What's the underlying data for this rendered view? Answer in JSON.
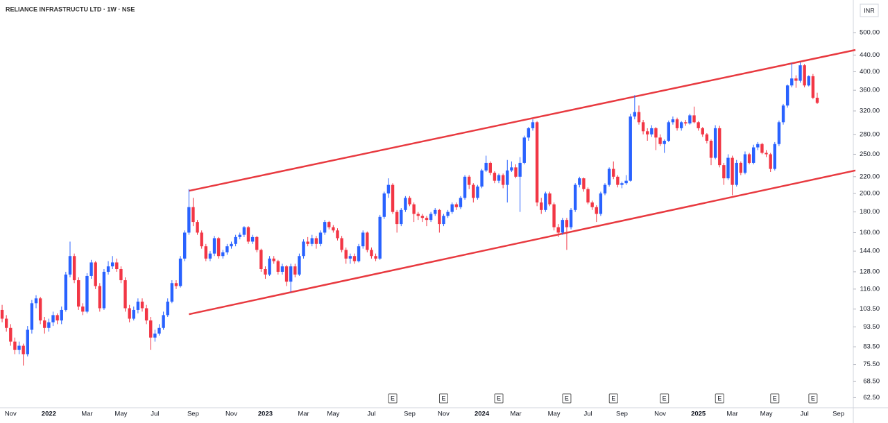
{
  "chart_data": {
    "type": "candlestick",
    "title": "RELIANCE INFRASTRUCTU LTD · 1W · NSE",
    "currency": "INR",
    "log_scale": true,
    "up_color": "#2962ff",
    "down_color": "#f23645",
    "ylim": [
      59,
      602
    ],
    "yticks": [
      {
        "value": 500,
        "label": "500.00"
      },
      {
        "value": 440,
        "label": "440.00"
      },
      {
        "value": 400,
        "label": "400.00"
      },
      {
        "value": 360,
        "label": "360.00"
      },
      {
        "value": 320,
        "label": "320.00"
      },
      {
        "value": 280,
        "label": "280.00"
      },
      {
        "value": 250,
        "label": "250.00"
      },
      {
        "value": 220,
        "label": "220.00"
      },
      {
        "value": 200,
        "label": "200.00"
      },
      {
        "value": 180,
        "label": "180.00"
      },
      {
        "value": 160,
        "label": "160.00"
      },
      {
        "value": 144,
        "label": "144.00"
      },
      {
        "value": 128,
        "label": "128.00"
      },
      {
        "value": 116,
        "label": "116.00"
      },
      {
        "value": 103.5,
        "label": "103.50"
      },
      {
        "value": 93.5,
        "label": "93.50"
      },
      {
        "value": 83.5,
        "label": "83.50"
      },
      {
        "value": 75.5,
        "label": "75.50"
      },
      {
        "value": 68.5,
        "label": "68.50"
      },
      {
        "value": 62.5,
        "label": "62.50"
      }
    ],
    "categories": [
      null,
      null,
      "Nov",
      null,
      null,
      null,
      null,
      null,
      null,
      null,
      null,
      "2022",
      null,
      null,
      null,
      null,
      null,
      null,
      null,
      null,
      "Mar",
      null,
      null,
      null,
      null,
      null,
      null,
      null,
      "May",
      null,
      null,
      null,
      null,
      null,
      null,
      null,
      "Jul",
      null,
      null,
      null,
      null,
      null,
      null,
      null,
      null,
      "Sep",
      null,
      null,
      null,
      null,
      null,
      null,
      null,
      null,
      "Nov",
      null,
      null,
      null,
      null,
      null,
      null,
      null,
      "2023",
      null,
      null,
      null,
      null,
      null,
      null,
      null,
      null,
      "Mar",
      null,
      null,
      null,
      null,
      null,
      null,
      "May",
      null,
      null,
      null,
      null,
      null,
      null,
      null,
      null,
      "Jul",
      null,
      null,
      null,
      null,
      null,
      null,
      null,
      null,
      "Sep",
      null,
      null,
      null,
      null,
      null,
      null,
      null,
      "Nov",
      null,
      null,
      null,
      null,
      null,
      null,
      null,
      null,
      "2024",
      null,
      null,
      null,
      null,
      null,
      null,
      null,
      "Mar",
      null,
      null,
      null,
      null,
      null,
      null,
      null,
      null,
      "May",
      null,
      null,
      null,
      null,
      null,
      null,
      null,
      "Jul",
      null,
      null,
      null,
      null,
      null,
      null,
      null,
      "Sep",
      null,
      null,
      null,
      null,
      null,
      null,
      null,
      null,
      "Nov",
      null,
      null,
      null,
      null,
      null,
      null,
      null,
      null,
      "2025",
      null,
      null,
      null,
      null,
      null,
      null,
      null,
      "Mar",
      null,
      null,
      null,
      null,
      null,
      null,
      null,
      "May",
      null,
      null,
      null,
      null,
      null,
      null,
      null,
      null,
      "Jul",
      null,
      null,
      null,
      null,
      null,
      null,
      null,
      "Sep",
      null,
      null,
      null
    ],
    "candles": [
      [
        103,
        106,
        96,
        98
      ],
      [
        98,
        100,
        91,
        93
      ],
      [
        93,
        95,
        84,
        86
      ],
      [
        86,
        88,
        80,
        82
      ],
      [
        82,
        86,
        80,
        84
      ],
      [
        84,
        85,
        75,
        80
      ],
      [
        80,
        94,
        79,
        92
      ],
      [
        92,
        109,
        90,
        107
      ],
      [
        107,
        112,
        104,
        110
      ],
      [
        110,
        111,
        95,
        97
      ],
      [
        97,
        99,
        90,
        93
      ],
      [
        93,
        98,
        91,
        96
      ],
      [
        96,
        102,
        94,
        100
      ],
      [
        100,
        101,
        95,
        97
      ],
      [
        97,
        105,
        95,
        103
      ],
      [
        103,
        128,
        102,
        126
      ],
      [
        126,
        152,
        124,
        140
      ],
      [
        140,
        142,
        120,
        122
      ],
      [
        122,
        124,
        103,
        105
      ],
      [
        105,
        107,
        100,
        102
      ],
      [
        102,
        127,
        101,
        125
      ],
      [
        125,
        137,
        123,
        135
      ],
      [
        135,
        136,
        116,
        118
      ],
      [
        118,
        120,
        102,
        104
      ],
      [
        104,
        130,
        103,
        128
      ],
      [
        128,
        136,
        126,
        132
      ],
      [
        132,
        140,
        130,
        135
      ],
      [
        135,
        138,
        128,
        130
      ],
      [
        130,
        132,
        120,
        122
      ],
      [
        122,
        124,
        102,
        104
      ],
      [
        104,
        106,
        96,
        98
      ],
      [
        98,
        105,
        97,
        103
      ],
      [
        103,
        110,
        101,
        108
      ],
      [
        108,
        110,
        102,
        104
      ],
      [
        104,
        106,
        95,
        97
      ],
      [
        97,
        99,
        82,
        88
      ],
      [
        88,
        92,
        86,
        90
      ],
      [
        90,
        95,
        89,
        93
      ],
      [
        93,
        102,
        92,
        100
      ],
      [
        100,
        110,
        99,
        108
      ],
      [
        108,
        122,
        107,
        120
      ],
      [
        120,
        122,
        116,
        118
      ],
      [
        118,
        140,
        117,
        138
      ],
      [
        138,
        162,
        136,
        160
      ],
      [
        160,
        205,
        158,
        185
      ],
      [
        185,
        195,
        166,
        170
      ],
      [
        170,
        172,
        158,
        160
      ],
      [
        160,
        162,
        146,
        148
      ],
      [
        148,
        150,
        136,
        138
      ],
      [
        138,
        144,
        136,
        142
      ],
      [
        142,
        157,
        140,
        155
      ],
      [
        155,
        156,
        138,
        140
      ],
      [
        140,
        145,
        138,
        143
      ],
      [
        143,
        150,
        141,
        148
      ],
      [
        148,
        152,
        146,
        150
      ],
      [
        150,
        158,
        148,
        156
      ],
      [
        156,
        160,
        154,
        158
      ],
      [
        158,
        166,
        156,
        165
      ],
      [
        165,
        166,
        150,
        152
      ],
      [
        152,
        158,
        150,
        156
      ],
      [
        156,
        157,
        143,
        145
      ],
      [
        145,
        146,
        128,
        130
      ],
      [
        130,
        132,
        123,
        126
      ],
      [
        126,
        140,
        125,
        138
      ],
      [
        138,
        140,
        134,
        136
      ],
      [
        136,
        137,
        126,
        128
      ],
      [
        128,
        134,
        126,
        132
      ],
      [
        132,
        133,
        118,
        121
      ],
      [
        121,
        134,
        114,
        132
      ],
      [
        132,
        134,
        124,
        126
      ],
      [
        126,
        142,
        125,
        140
      ],
      [
        140,
        154,
        138,
        152
      ],
      [
        152,
        156,
        148,
        150
      ],
      [
        150,
        158,
        148,
        155
      ],
      [
        155,
        157,
        146,
        150
      ],
      [
        150,
        162,
        148,
        160
      ],
      [
        160,
        172,
        158,
        170
      ],
      [
        170,
        171,
        163,
        165
      ],
      [
        165,
        167,
        160,
        162
      ],
      [
        162,
        164,
        153,
        155
      ],
      [
        155,
        157,
        143,
        145
      ],
      [
        145,
        147,
        134,
        138
      ],
      [
        138,
        142,
        134,
        140
      ],
      [
        140,
        142,
        134,
        136
      ],
      [
        136,
        150,
        135,
        148
      ],
      [
        148,
        162,
        146,
        160
      ],
      [
        160,
        161,
        143,
        145
      ],
      [
        145,
        147,
        138,
        140
      ],
      [
        140,
        142,
        136,
        138
      ],
      [
        138,
        177,
        137,
        175
      ],
      [
        175,
        202,
        173,
        200
      ],
      [
        200,
        218,
        195,
        210
      ],
      [
        210,
        212,
        178,
        180
      ],
      [
        180,
        182,
        160,
        168
      ],
      [
        168,
        184,
        166,
        182
      ],
      [
        182,
        197,
        180,
        195
      ],
      [
        195,
        197,
        186,
        188
      ],
      [
        188,
        190,
        170,
        178
      ],
      [
        178,
        180,
        172,
        176
      ],
      [
        176,
        178,
        170,
        174
      ],
      [
        174,
        176,
        166,
        172
      ],
      [
        172,
        180,
        170,
        178
      ],
      [
        178,
        184,
        176,
        182
      ],
      [
        182,
        183,
        160,
        168
      ],
      [
        168,
        178,
        166,
        176
      ],
      [
        176,
        182,
        174,
        180
      ],
      [
        180,
        190,
        178,
        188
      ],
      [
        188,
        190,
        182,
        185
      ],
      [
        185,
        197,
        183,
        195
      ],
      [
        195,
        222,
        193,
        220
      ],
      [
        220,
        222,
        205,
        210
      ],
      [
        210,
        212,
        190,
        195
      ],
      [
        195,
        210,
        193,
        208
      ],
      [
        208,
        230,
        206,
        228
      ],
      [
        228,
        248,
        226,
        238
      ],
      [
        238,
        240,
        222,
        225
      ],
      [
        225,
        227,
        212,
        215
      ],
      [
        215,
        224,
        212,
        222
      ],
      [
        222,
        224,
        206,
        210
      ],
      [
        210,
        242,
        190,
        228
      ],
      [
        228,
        240,
        226,
        232
      ],
      [
        232,
        236,
        218,
        220
      ],
      [
        220,
        246,
        180,
        238
      ],
      [
        238,
        278,
        236,
        275
      ],
      [
        275,
        292,
        270,
        290
      ],
      [
        290,
        305,
        286,
        300
      ],
      [
        300,
        302,
        186,
        190
      ],
      [
        190,
        195,
        178,
        182
      ],
      [
        182,
        202,
        180,
        200
      ],
      [
        200,
        202,
        186,
        188
      ],
      [
        188,
        190,
        162,
        165
      ],
      [
        165,
        168,
        156,
        160
      ],
      [
        160,
        174,
        158,
        172
      ],
      [
        172,
        174,
        145,
        165
      ],
      [
        165,
        184,
        163,
        182
      ],
      [
        182,
        212,
        180,
        210
      ],
      [
        210,
        220,
        207,
        218
      ],
      [
        218,
        219,
        202,
        205
      ],
      [
        205,
        207,
        188,
        190
      ],
      [
        190,
        192,
        182,
        185
      ],
      [
        185,
        187,
        170,
        178
      ],
      [
        178,
        202,
        176,
        200
      ],
      [
        200,
        212,
        198,
        210
      ],
      [
        210,
        232,
        208,
        230
      ],
      [
        230,
        240,
        217,
        220
      ],
      [
        220,
        222,
        207,
        210
      ],
      [
        210,
        214,
        206,
        212
      ],
      [
        212,
        222,
        210,
        215
      ],
      [
        215,
        315,
        214,
        310
      ],
      [
        310,
        350,
        305,
        318
      ],
      [
        318,
        330,
        296,
        300
      ],
      [
        300,
        304,
        280,
        285
      ],
      [
        285,
        290,
        270,
        280
      ],
      [
        280,
        295,
        276,
        290
      ],
      [
        290,
        292,
        256,
        275
      ],
      [
        275,
        280,
        262,
        265
      ],
      [
        265,
        272,
        252,
        270
      ],
      [
        270,
        303,
        268,
        300
      ],
      [
        300,
        310,
        296,
        305
      ],
      [
        305,
        308,
        286,
        290
      ],
      [
        290,
        302,
        286,
        300
      ],
      [
        300,
        304,
        294,
        298
      ],
      [
        298,
        315,
        296,
        312
      ],
      [
        312,
        328,
        298,
        300
      ],
      [
        300,
        302,
        286,
        290
      ],
      [
        290,
        292,
        276,
        280
      ],
      [
        280,
        282,
        266,
        270
      ],
      [
        270,
        272,
        235,
        245
      ],
      [
        245,
        295,
        243,
        290
      ],
      [
        290,
        294,
        232,
        235
      ],
      [
        235,
        238,
        210,
        218
      ],
      [
        218,
        250,
        216,
        245
      ],
      [
        245,
        248,
        198,
        210
      ],
      [
        210,
        242,
        208,
        238
      ],
      [
        238,
        240,
        222,
        225
      ],
      [
        225,
        254,
        223,
        250
      ],
      [
        250,
        252,
        236,
        238
      ],
      [
        238,
        264,
        236,
        260
      ],
      [
        260,
        268,
        256,
        265
      ],
      [
        265,
        267,
        250,
        252
      ],
      [
        252,
        256,
        246,
        250
      ],
      [
        250,
        252,
        226,
        230
      ],
      [
        230,
        268,
        228,
        265
      ],
      [
        265,
        303,
        262,
        300
      ],
      [
        300,
        333,
        296,
        330
      ],
      [
        330,
        372,
        326,
        370
      ],
      [
        370,
        420,
        366,
        385
      ],
      [
        385,
        392,
        365,
        380
      ],
      [
        380,
        422,
        376,
        415
      ],
      [
        415,
        418,
        366,
        370
      ],
      [
        370,
        392,
        368,
        390
      ],
      [
        390,
        395,
        342,
        345
      ],
      [
        345,
        355,
        333,
        335
      ],
      null,
      null,
      null,
      null,
      null,
      null,
      null,
      null
    ],
    "trendlines": [
      {
        "x0": 44,
        "y0": 203,
        "x1": 201,
        "y1": 453,
        "color": "#e8393f"
      },
      {
        "x0": 44,
        "y0": 100.5,
        "x1": 201,
        "y1": 228,
        "color": "#e8393f"
      }
    ],
    "earnings": [
      {
        "index": 92,
        "label": "E"
      },
      {
        "index": 104,
        "label": "E"
      },
      {
        "index": 117,
        "label": "E"
      },
      {
        "index": 133,
        "label": "E"
      },
      {
        "index": 144,
        "label": "E"
      },
      {
        "index": 156,
        "label": "E"
      },
      {
        "index": 169,
        "label": "E"
      },
      {
        "index": 182,
        "label": "E"
      },
      {
        "index": 191,
        "label": "E"
      }
    ]
  }
}
